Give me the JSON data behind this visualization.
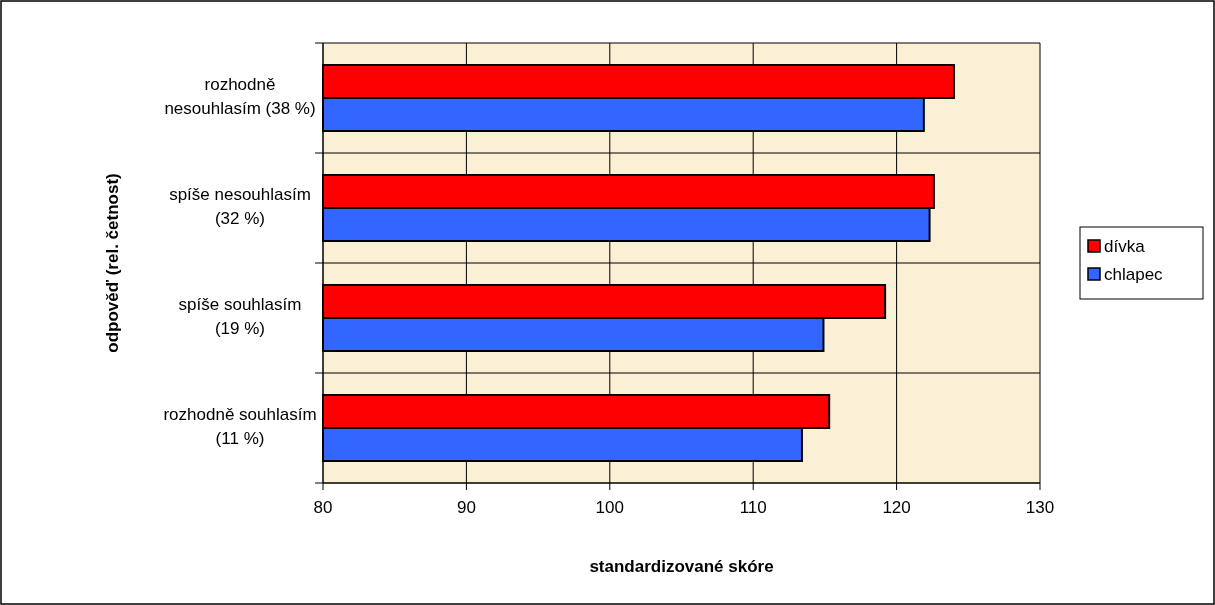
{
  "chart_data": {
    "type": "bar",
    "orientation": "horizontal",
    "xlabel": "standardizované skóre",
    "ylabel": "odpověď (rel. četnost)",
    "categories": [
      "rozhodně nesouhlasím (38 %)",
      "spíše nesouhlasím (32 %)",
      "spíše souhlasím (19 %)",
      "rozhodně souhlasím (11 %)"
    ],
    "series": [
      {
        "name": "dívka",
        "color": "#ff0000",
        "values": [
          124.0,
          122.6,
          119.2,
          115.3
        ]
      },
      {
        "name": "chlapec",
        "color": "#3366ff",
        "values": [
          121.9,
          122.3,
          114.9,
          113.4
        ]
      }
    ],
    "xlim": [
      80,
      130
    ],
    "xticks": [
      80,
      90,
      100,
      110,
      120,
      130
    ],
    "grid": true,
    "legend": "right"
  }
}
